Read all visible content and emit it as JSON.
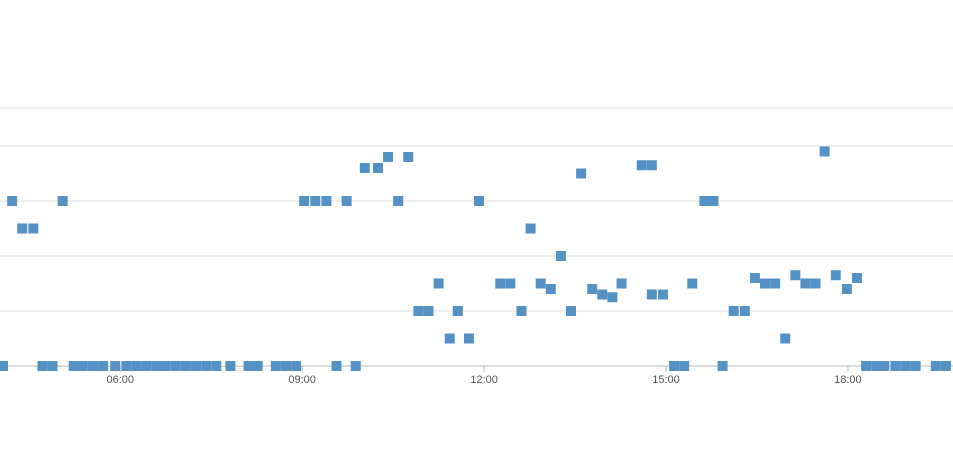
{
  "chart_data": {
    "type": "scatter",
    "x": [
      244,
      253,
      263,
      274,
      283,
      293,
      303,
      314,
      323,
      333,
      343,
      355,
      366,
      376,
      386,
      396,
      405,
      415,
      425,
      435,
      445,
      455,
      469,
      487,
      496,
      514,
      524,
      534,
      542,
      553,
      564,
      574,
      584,
      593,
      602,
      615,
      625,
      635,
      645,
      655,
      665,
      675,
      686,
      694,
      705,
      715,
      736,
      746,
      757,
      766,
      776,
      786,
      796,
      806,
      816,
      827,
      837,
      847,
      856,
      876,
      886,
      886,
      897,
      908,
      918,
      926,
      938,
      947,
      956,
      967,
      978,
      988,
      998,
      1008,
      1018,
      1028,
      1038,
      1048,
      1057,
      1068,
      1079,
      1089,
      1098,
      1108,
      1116,
      1127,
      1137,
      1147,
      1167,
      1177
    ],
    "values": [
      0,
      3,
      2.5,
      2.5,
      0,
      0,
      3,
      0,
      0,
      0,
      0,
      0,
      0,
      0,
      0,
      0,
      0,
      0,
      0,
      0,
      0,
      0,
      0,
      0,
      0,
      0,
      0,
      0,
      3,
      3,
      3,
      0,
      3,
      0,
      3.6,
      3.6,
      3.8,
      3,
      3.8,
      1,
      1,
      1.5,
      0.5,
      1,
      0.5,
      3,
      1.5,
      1.5,
      1,
      2.5,
      1.5,
      1.4,
      2,
      1,
      3.5,
      1.4,
      1.3,
      1.25,
      1.5,
      3.65,
      3.65,
      1.3,
      1.3,
      0,
      0,
      1.5,
      3,
      3,
      0,
      1,
      1,
      1.6,
      1.5,
      1.5,
      0.5,
      1.65,
      1.5,
      1.5,
      3.9,
      1.65,
      1.4,
      1.6,
      0,
      0,
      0,
      0,
      0,
      0,
      0,
      0
    ],
    "color": "#5492c6",
    "xlim": [
      241,
      1184
    ],
    "xticks": [
      {
        "value": 360,
        "label": "06:00"
      },
      {
        "value": 540,
        "label": "09:00"
      },
      {
        "value": 720,
        "label": "12:00"
      },
      {
        "value": 900,
        "label": "15:00"
      },
      {
        "value": 1080,
        "label": "18:00"
      }
    ],
    "ylim": [
      0,
      4.7
    ],
    "yticks": [
      0,
      1,
      2,
      3,
      4
    ],
    "grid": true
  }
}
